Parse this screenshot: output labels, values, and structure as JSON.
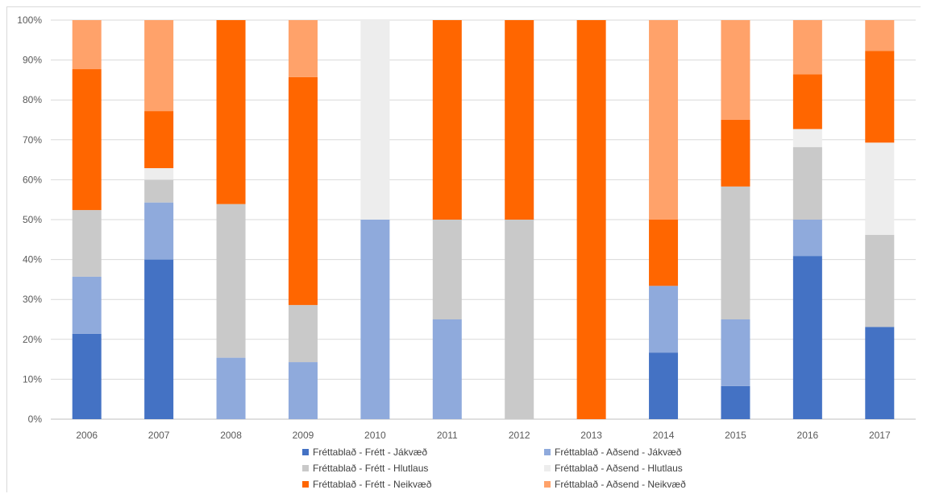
{
  "chart_data": {
    "type": "bar",
    "stacked": "percent",
    "categories": [
      "2006",
      "2007",
      "2008",
      "2009",
      "2010",
      "2011",
      "2012",
      "2013",
      "2014",
      "2015",
      "2016",
      "2017"
    ],
    "y_ticks": [
      "0%",
      "10%",
      "20%",
      "30%",
      "40%",
      "50%",
      "60%",
      "70%",
      "80%",
      "90%",
      "100%"
    ],
    "ylim": [
      0,
      100
    ],
    "grid": true,
    "legend_position": "bottom",
    "series": [
      {
        "name": "Fréttablað - Frétt - Jákvæð",
        "color": "#4472C4",
        "values": [
          21.4,
          40,
          0,
          0,
          0,
          0,
          0,
          0,
          16.7,
          8.3,
          40.9,
          23.1
        ]
      },
      {
        "name": "Fréttablað - Aðsend - Jákvæð",
        "color": "#8FAADC",
        "values": [
          14.3,
          14.3,
          15.4,
          14.3,
          50,
          25,
          0,
          0,
          16.7,
          16.7,
          9.1,
          0
        ]
      },
      {
        "name": "Fréttablað - Frétt - Hlutlaus",
        "color": "#C9C9C9",
        "values": [
          16.7,
          5.7,
          38.5,
          14.3,
          0,
          25,
          50,
          0,
          0,
          33.3,
          18.2,
          23.1
        ]
      },
      {
        "name": "Fréttablað - Aðsend - Hlutlaus",
        "color": "#EDEDED",
        "values": [
          0,
          2.9,
          0,
          0,
          50,
          0,
          0,
          0,
          0,
          0,
          4.5,
          23.1
        ]
      },
      {
        "name": "Fréttablað - Frétt - Neikvæð",
        "color": "#FF6600",
        "values": [
          35.3,
          14.3,
          46.1,
          57.1,
          0,
          50,
          50,
          100,
          16.6,
          16.7,
          13.7,
          23
        ]
      },
      {
        "name": "Fréttablað - Aðsend - Neikvæð",
        "color": "#FFA26A",
        "values": [
          12.3,
          22.8,
          0,
          14.3,
          0,
          0,
          0,
          0,
          50,
          25,
          13.6,
          7.7
        ]
      }
    ]
  }
}
